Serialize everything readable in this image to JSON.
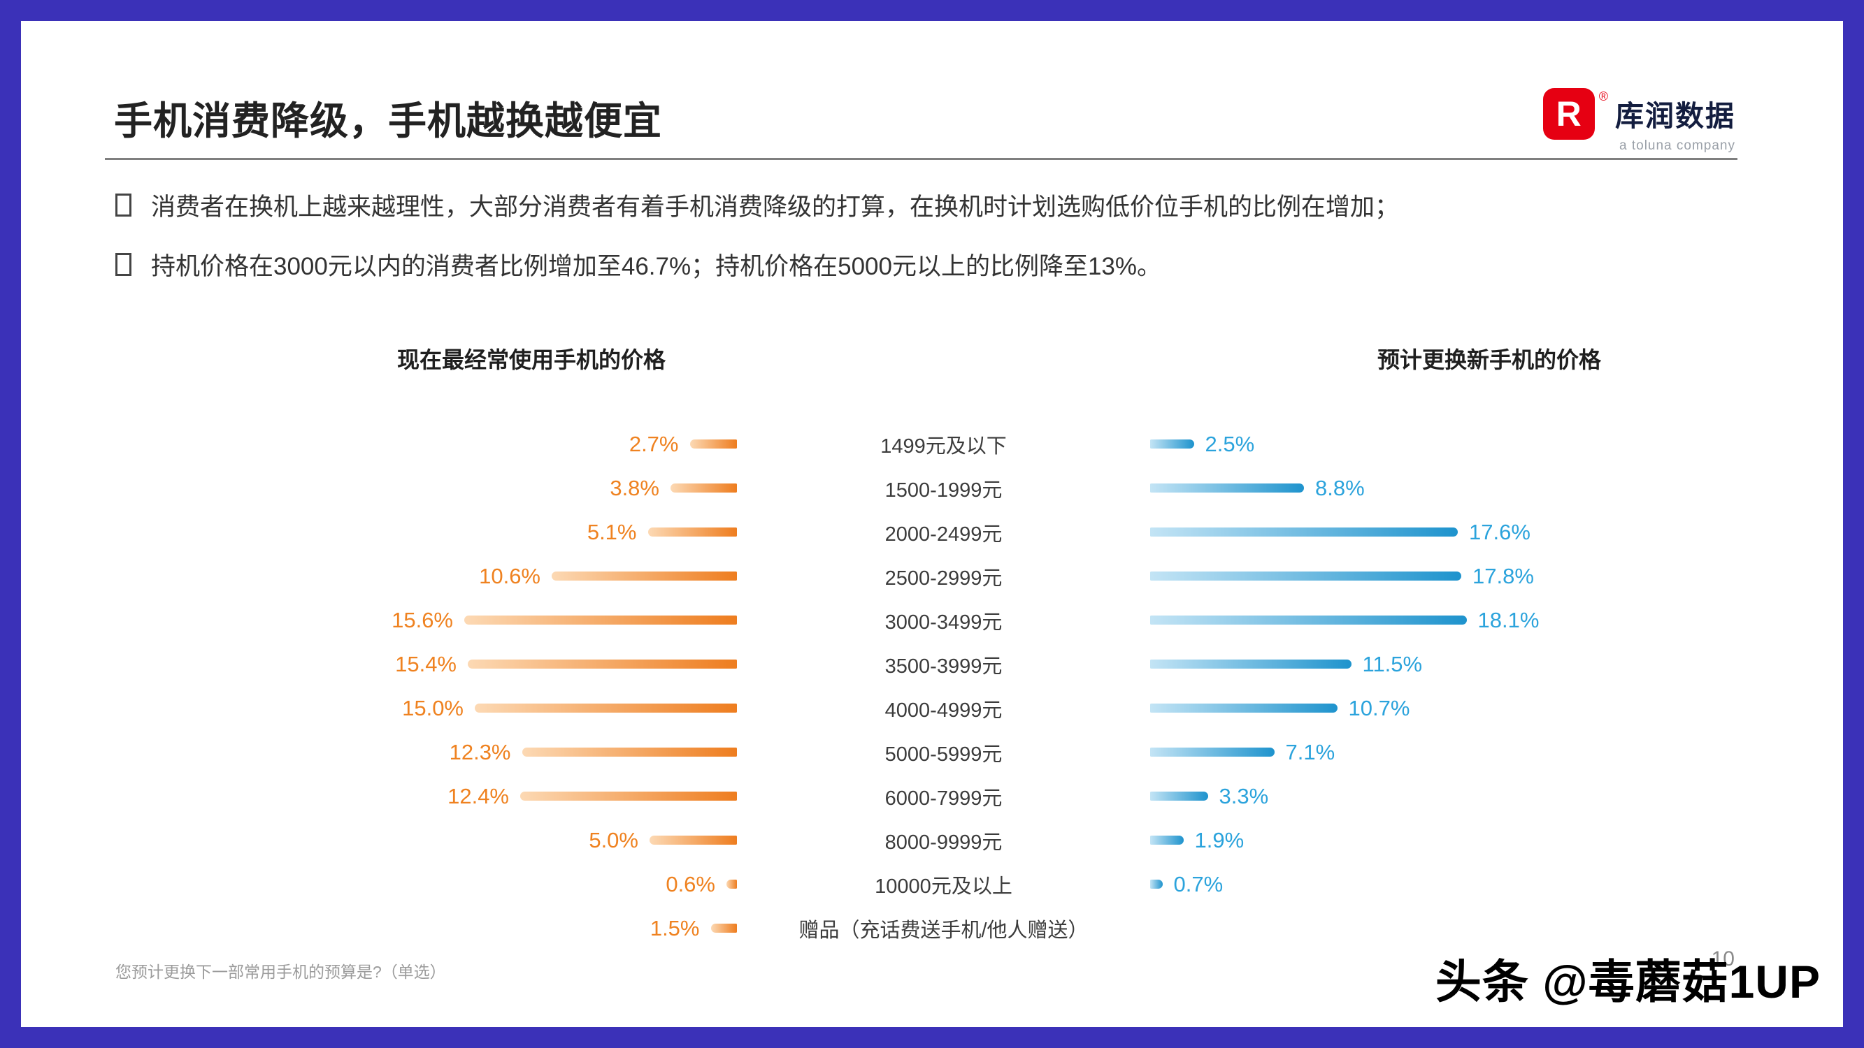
{
  "slide": {
    "title": "手机消费降级，手机越换越便宜",
    "bullets": [
      "消费者在换机上越来越理性，大部分消费者有着手机消费降级的打算，在换机时计划选购低价位手机的比例在增加；",
      "持机价格在3000元以内的消费者比例增加至46.7%；持机价格在5000元以上的比例降至13%。"
    ],
    "footnote": "您预计更换下一部常用手机的预算是?（单选）",
    "page_number": "10",
    "watermark": "头条 @毒蘑菇1UP",
    "logo": {
      "brand": "库润数据",
      "subbrand": "a toluna company",
      "mark": "R",
      "registered": "®",
      "brand_color": "#e60012"
    }
  },
  "chart_data": {
    "type": "bar",
    "variant": "tornado",
    "orientation": "horizontal",
    "grid": false,
    "legend_position": "none",
    "center_category_labels": true,
    "xlim": [
      0,
      20
    ],
    "value_suffix": "%",
    "categories": [
      "1499元及以下",
      "1500-1999元",
      "2000-2499元",
      "2500-2999元",
      "3000-3499元",
      "3500-3999元",
      "4000-4999元",
      "5000-5999元",
      "6000-7999元",
      "8000-9999元",
      "10000元及以上",
      "赠品（充话费送手机/他人赠送）"
    ],
    "series": [
      {
        "name": "现在最经常使用手机的价格",
        "side": "left",
        "color": "#ee7d1f",
        "values": [
          2.7,
          3.8,
          5.1,
          10.6,
          15.6,
          15.4,
          15.0,
          12.3,
          12.4,
          5.0,
          0.6,
          1.5
        ]
      },
      {
        "name": "预计更换新手机的价格",
        "side": "right",
        "color": "#1e93cd",
        "values": [
          2.5,
          8.8,
          17.6,
          17.8,
          18.1,
          11.5,
          10.7,
          7.1,
          3.3,
          1.9,
          0.7,
          null
        ]
      }
    ]
  }
}
